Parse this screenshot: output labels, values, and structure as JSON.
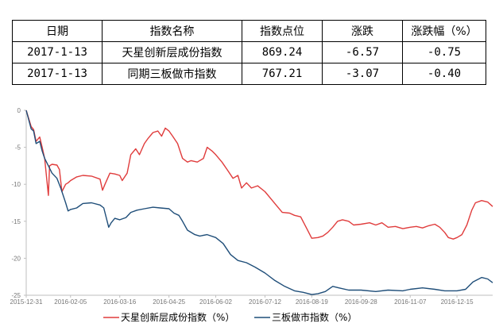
{
  "table": {
    "headers": [
      "日期",
      "指数名称",
      "指数点位",
      "涨跌",
      "涨跌幅（%）"
    ],
    "rows": [
      [
        "2017-1-13",
        "天星创新层成份指数",
        "869.24",
        "-6.57",
        "-0.75"
      ],
      [
        "2017-1-13",
        "同期三板做市指数",
        "767.21",
        "-3.07",
        "-0.40"
      ]
    ]
  },
  "chart_data": {
    "type": "line",
    "title": "",
    "xlabel": "",
    "ylabel": "",
    "x_ticks": [
      "2015-12-31",
      "2016-02-05",
      "2016-03-16",
      "2016-04-25",
      "2016-06-02",
      "2016-07-12",
      "2016-08-19",
      "2016-09-28",
      "2016-11-07",
      "2016-12-15"
    ],
    "x_range": [
      "2015-12-31",
      "2017-01-13"
    ],
    "y_ticks": [
      0,
      -5,
      -10,
      -15,
      -20,
      -25
    ],
    "ylim": [
      -25,
      0
    ],
    "grid": false,
    "legend_position": "bottom",
    "series": [
      {
        "name": "天星创新层成份指数（%）",
        "color": "#e03c3c",
        "points": [
          [
            "2015-12-31",
            0
          ],
          [
            "2016-01-04",
            -2.2
          ],
          [
            "2016-01-06",
            -2.6
          ],
          [
            "2016-01-08",
            -4.2
          ],
          [
            "2016-01-11",
            -3.6
          ],
          [
            "2016-01-13",
            -5.0
          ],
          [
            "2016-01-15",
            -6.5
          ],
          [
            "2016-01-18",
            -11.5
          ],
          [
            "2016-01-19",
            -7.5
          ],
          [
            "2016-01-21",
            -7.3
          ],
          [
            "2016-01-25",
            -7.4
          ],
          [
            "2016-01-27",
            -8.0
          ],
          [
            "2016-01-29",
            -11.0
          ],
          [
            "2016-02-01",
            -10.0
          ],
          [
            "2016-02-03",
            -9.8
          ],
          [
            "2016-02-05",
            -9.5
          ],
          [
            "2016-02-10",
            -9.0
          ],
          [
            "2016-02-15",
            -8.8
          ],
          [
            "2016-02-22",
            -8.9
          ],
          [
            "2016-02-29",
            -9.3
          ],
          [
            "2016-03-02",
            -10.8
          ],
          [
            "2016-03-04",
            -10.0
          ],
          [
            "2016-03-08",
            -8.5
          ],
          [
            "2016-03-12",
            -8.6
          ],
          [
            "2016-03-16",
            -8.8
          ],
          [
            "2016-03-18",
            -9.5
          ],
          [
            "2016-03-22",
            -8.5
          ],
          [
            "2016-03-25",
            -6.0
          ],
          [
            "2016-03-29",
            -5.2
          ],
          [
            "2016-04-01",
            -6.0
          ],
          [
            "2016-04-05",
            -4.5
          ],
          [
            "2016-04-08",
            -3.8
          ],
          [
            "2016-04-12",
            -3.0
          ],
          [
            "2016-04-16",
            -2.8
          ],
          [
            "2016-04-19",
            -3.5
          ],
          [
            "2016-04-22",
            -2.4
          ],
          [
            "2016-04-25",
            -2.8
          ],
          [
            "2016-04-28",
            -3.5
          ],
          [
            "2016-05-02",
            -4.5
          ],
          [
            "2016-05-06",
            -6.5
          ],
          [
            "2016-05-10",
            -7.0
          ],
          [
            "2016-05-13",
            -6.8
          ],
          [
            "2016-05-18",
            -7.0
          ],
          [
            "2016-05-23",
            -6.5
          ],
          [
            "2016-05-26",
            -5.0
          ],
          [
            "2016-05-30",
            -5.5
          ],
          [
            "2016-06-02",
            -6.0
          ],
          [
            "2016-06-07",
            -7.0
          ],
          [
            "2016-06-12",
            -8.2
          ],
          [
            "2016-06-16",
            -9.2
          ],
          [
            "2016-06-20",
            -8.8
          ],
          [
            "2016-06-23",
            -10.5
          ],
          [
            "2016-06-27",
            -9.8
          ],
          [
            "2016-07-01",
            -10.5
          ],
          [
            "2016-07-06",
            -10.2
          ],
          [
            "2016-07-12",
            -11.0
          ],
          [
            "2016-07-18",
            -12.2
          ],
          [
            "2016-07-22",
            -13.0
          ],
          [
            "2016-07-26",
            -13.8
          ],
          [
            "2016-08-01",
            -13.9
          ],
          [
            "2016-08-05",
            -14.2
          ],
          [
            "2016-08-10",
            -14.4
          ],
          [
            "2016-08-15",
            -16.0
          ],
          [
            "2016-08-19",
            -17.3
          ],
          [
            "2016-08-24",
            -17.2
          ],
          [
            "2016-08-28",
            -17.0
          ],
          [
            "2016-09-01",
            -16.5
          ],
          [
            "2016-09-05",
            -15.8
          ],
          [
            "2016-09-09",
            -15.0
          ],
          [
            "2016-09-13",
            -14.8
          ],
          [
            "2016-09-18",
            -15.0
          ],
          [
            "2016-09-22",
            -15.5
          ],
          [
            "2016-09-28",
            -15.4
          ],
          [
            "2016-10-05",
            -15.2
          ],
          [
            "2016-10-10",
            -15.5
          ],
          [
            "2016-10-15",
            -15.2
          ],
          [
            "2016-10-20",
            -15.8
          ],
          [
            "2016-10-26",
            -15.7
          ],
          [
            "2016-11-01",
            -16.0
          ],
          [
            "2016-11-07",
            -15.8
          ],
          [
            "2016-11-12",
            -15.7
          ],
          [
            "2016-11-17",
            -15.9
          ],
          [
            "2016-11-22",
            -15.6
          ],
          [
            "2016-11-27",
            -15.4
          ],
          [
            "2016-12-01",
            -15.8
          ],
          [
            "2016-12-05",
            -16.5
          ],
          [
            "2016-12-08",
            -17.2
          ],
          [
            "2016-12-12",
            -17.4
          ],
          [
            "2016-12-15",
            -17.2
          ],
          [
            "2016-12-19",
            -16.8
          ],
          [
            "2016-12-23",
            -15.5
          ],
          [
            "2016-12-27",
            -13.5
          ],
          [
            "2016-12-30",
            -12.5
          ],
          [
            "2017-01-04",
            -12.2
          ],
          [
            "2017-01-09",
            -12.4
          ],
          [
            "2017-01-13",
            -13.0
          ]
        ]
      },
      {
        "name": "三板做市指数（%）",
        "color": "#1f4e79",
        "points": [
          [
            "2015-12-31",
            0
          ],
          [
            "2016-01-04",
            -2.5
          ],
          [
            "2016-01-06",
            -2.8
          ],
          [
            "2016-01-08",
            -4.5
          ],
          [
            "2016-01-11",
            -4.2
          ],
          [
            "2016-01-13",
            -5.5
          ],
          [
            "2016-01-15",
            -6.5
          ],
          [
            "2016-01-18",
            -7.5
          ],
          [
            "2016-01-21",
            -8.5
          ],
          [
            "2016-01-25",
            -9.2
          ],
          [
            "2016-01-28",
            -10.5
          ],
          [
            "2016-02-01",
            -12.5
          ],
          [
            "2016-02-03",
            -13.6
          ],
          [
            "2016-02-05",
            -13.4
          ],
          [
            "2016-02-10",
            -13.2
          ],
          [
            "2016-02-15",
            -12.6
          ],
          [
            "2016-02-22",
            -12.5
          ],
          [
            "2016-02-29",
            -12.8
          ],
          [
            "2016-03-03",
            -13.2
          ],
          [
            "2016-03-07",
            -15.8
          ],
          [
            "2016-03-09",
            -15.2
          ],
          [
            "2016-03-12",
            -14.6
          ],
          [
            "2016-03-16",
            -14.8
          ],
          [
            "2016-03-21",
            -14.5
          ],
          [
            "2016-03-25",
            -13.8
          ],
          [
            "2016-03-30",
            -13.5
          ],
          [
            "2016-04-05",
            -13.3
          ],
          [
            "2016-04-12",
            -13.1
          ],
          [
            "2016-04-18",
            -13.2
          ],
          [
            "2016-04-25",
            -13.3
          ],
          [
            "2016-04-29",
            -13.9
          ],
          [
            "2016-05-03",
            -14.2
          ],
          [
            "2016-05-06",
            -15.0
          ],
          [
            "2016-05-10",
            -16.2
          ],
          [
            "2016-05-16",
            -16.8
          ],
          [
            "2016-05-20",
            -17.0
          ],
          [
            "2016-05-26",
            -16.8
          ],
          [
            "2016-06-02",
            -17.2
          ],
          [
            "2016-06-08",
            -18.0
          ],
          [
            "2016-06-14",
            -19.5
          ],
          [
            "2016-06-20",
            -20.3
          ],
          [
            "2016-06-27",
            -20.6
          ],
          [
            "2016-07-04",
            -21.2
          ],
          [
            "2016-07-12",
            -22.0
          ],
          [
            "2016-07-20",
            -23.0
          ],
          [
            "2016-07-28",
            -23.8
          ],
          [
            "2016-08-05",
            -24.4
          ],
          [
            "2016-08-12",
            -24.6
          ],
          [
            "2016-08-19",
            -24.9
          ],
          [
            "2016-08-24",
            -24.8
          ],
          [
            "2016-08-30",
            -24.5
          ],
          [
            "2016-09-05",
            -23.8
          ],
          [
            "2016-09-10",
            -24.0
          ],
          [
            "2016-09-18",
            -24.3
          ],
          [
            "2016-09-28",
            -24.3
          ],
          [
            "2016-10-10",
            -24.5
          ],
          [
            "2016-10-20",
            -24.3
          ],
          [
            "2016-11-01",
            -24.4
          ],
          [
            "2016-11-07",
            -24.2
          ],
          [
            "2016-11-17",
            -24.0
          ],
          [
            "2016-11-27",
            -24.2
          ],
          [
            "2016-12-05",
            -24.4
          ],
          [
            "2016-12-15",
            -24.4
          ],
          [
            "2016-12-22",
            -24.2
          ],
          [
            "2016-12-28",
            -23.2
          ],
          [
            "2017-01-04",
            -22.6
          ],
          [
            "2017-01-09",
            -22.8
          ],
          [
            "2017-01-13",
            -23.3
          ]
        ]
      }
    ]
  }
}
